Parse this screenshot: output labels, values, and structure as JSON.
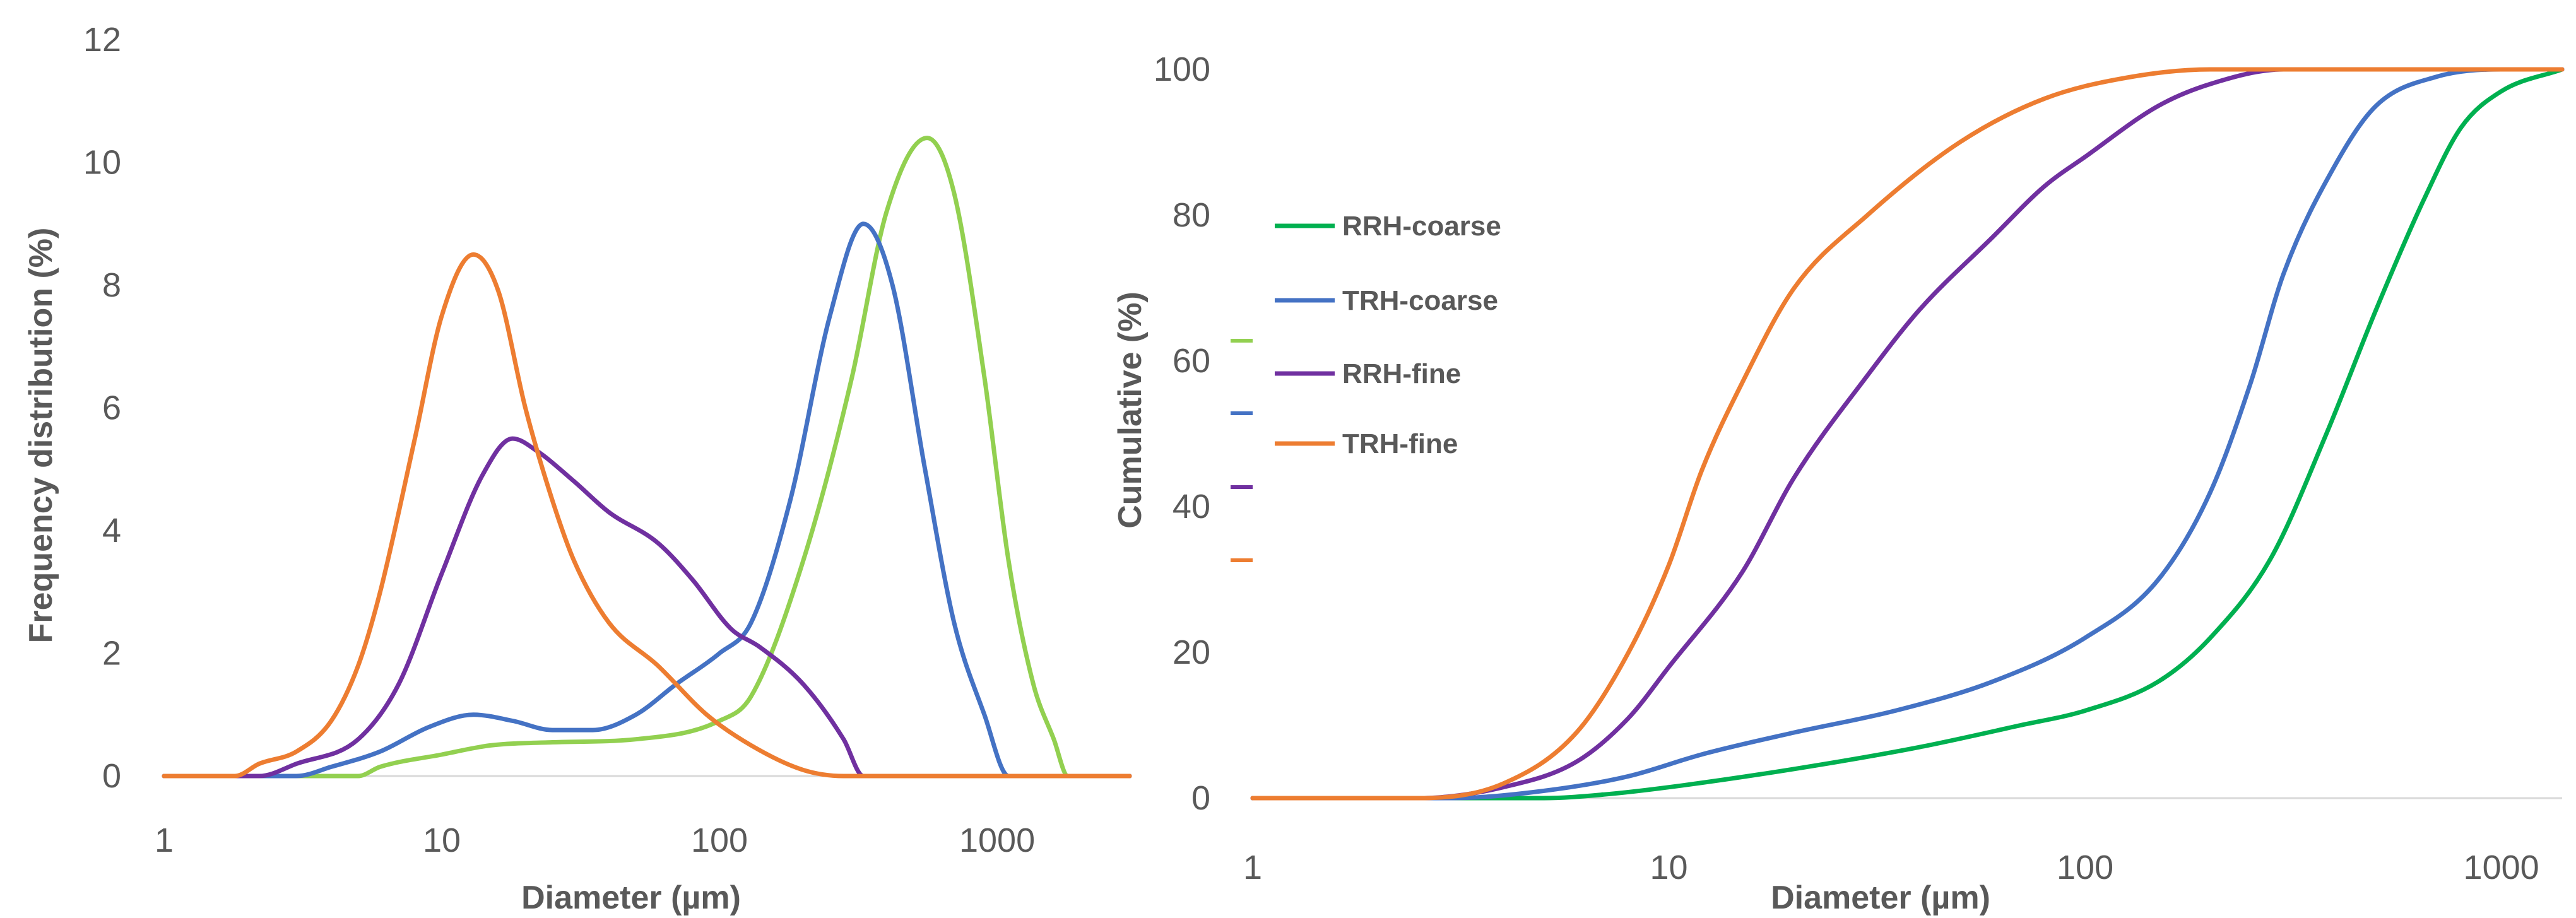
{
  "chart_data": [
    {
      "type": "line",
      "title": "",
      "xlabel": "Diameter (µm)",
      "ylabel": "Frequency distribution (%)",
      "xscale": "log",
      "xlim": [
        1,
        3000
      ],
      "ylim": [
        0,
        12
      ],
      "xticks": [
        {
          "value": 1,
          "label": "1"
        },
        {
          "value": 10,
          "label": "10"
        },
        {
          "value": 100,
          "label": "100"
        },
        {
          "value": 1000,
          "label": "1000"
        }
      ],
      "yticks": [
        {
          "value": 0,
          "label": "0"
        },
        {
          "value": 2,
          "label": "2"
        },
        {
          "value": 4,
          "label": "4"
        },
        {
          "value": 6,
          "label": "6"
        },
        {
          "value": 8,
          "label": "8"
        },
        {
          "value": 10,
          "label": "10"
        },
        {
          "value": 12,
          "label": "12"
        }
      ],
      "grid": false,
      "series": [
        {
          "name": "RRH-coarse",
          "color": "#92d050",
          "points": [
            [
              1,
              0
            ],
            [
              5,
              0
            ],
            [
              6,
              0.15
            ],
            [
              10,
              0.35
            ],
            [
              15,
              0.5
            ],
            [
              25,
              0.55
            ],
            [
              50,
              0.6
            ],
            [
              100,
              0.9
            ],
            [
              130,
              1.3
            ],
            [
              200,
              3.5
            ],
            [
              300,
              6.5
            ],
            [
              400,
              9.2
            ],
            [
              560,
              10.4
            ],
            [
              700,
              9.5
            ],
            [
              900,
              6.5
            ],
            [
              1100,
              3.5
            ],
            [
              1350,
              1.5
            ],
            [
              1600,
              0.6
            ],
            [
              1800,
              0
            ],
            [
              3000,
              0
            ]
          ]
        },
        {
          "name": "TRH-coarse",
          "color": "#4472c4",
          "points": [
            [
              1,
              0
            ],
            [
              3,
              0
            ],
            [
              4,
              0.15
            ],
            [
              6,
              0.4
            ],
            [
              9,
              0.8
            ],
            [
              13,
              1.0
            ],
            [
              18,
              0.9
            ],
            [
              25,
              0.75
            ],
            [
              35,
              0.75
            ],
            [
              50,
              1.0
            ],
            [
              70,
              1.5
            ],
            [
              100,
              2.0
            ],
            [
              130,
              2.5
            ],
            [
              180,
              4.5
            ],
            [
              250,
              7.5
            ],
            [
              330,
              9.0
            ],
            [
              420,
              8.0
            ],
            [
              550,
              5.0
            ],
            [
              700,
              2.5
            ],
            [
              900,
              1.0
            ],
            [
              1100,
              0
            ],
            [
              3000,
              0
            ]
          ]
        },
        {
          "name": "RRH-fine",
          "color": "#7030a0",
          "points": [
            [
              1,
              0
            ],
            [
              2.2,
              0
            ],
            [
              3,
              0.2
            ],
            [
              5,
              0.6
            ],
            [
              7,
              1.5
            ],
            [
              10,
              3.3
            ],
            [
              14,
              4.9
            ],
            [
              18,
              5.5
            ],
            [
              22,
              5.3
            ],
            [
              30,
              4.8
            ],
            [
              40,
              4.3
            ],
            [
              60,
              3.8
            ],
            [
              80,
              3.2
            ],
            [
              110,
              2.4
            ],
            [
              140,
              2.1
            ],
            [
              200,
              1.5
            ],
            [
              280,
              0.6
            ],
            [
              330,
              0
            ],
            [
              3000,
              0
            ]
          ]
        },
        {
          "name": "TRH-fine",
          "color": "#ed7d31",
          "points": [
            [
              1,
              0
            ],
            [
              1.8,
              0
            ],
            [
              2.2,
              0.2
            ],
            [
              3,
              0.4
            ],
            [
              4,
              0.9
            ],
            [
              5,
              1.8
            ],
            [
              6,
              3.0
            ],
            [
              8,
              5.5
            ],
            [
              10,
              7.5
            ],
            [
              13,
              8.5
            ],
            [
              16,
              7.9
            ],
            [
              20,
              6.0
            ],
            [
              25,
              4.5
            ],
            [
              30,
              3.5
            ],
            [
              40,
              2.5
            ],
            [
              60,
              1.8
            ],
            [
              90,
              1.0
            ],
            [
              130,
              0.5
            ],
            [
              200,
              0.1
            ],
            [
              280,
              0
            ],
            [
              3000,
              0
            ]
          ]
        }
      ]
    },
    {
      "type": "line",
      "title": "",
      "xlabel": "Diameter (µm)",
      "ylabel": "Cumulative (%)",
      "xscale": "log",
      "xlim": [
        1,
        1400
      ],
      "ylim": [
        0,
        100
      ],
      "xticks": [
        {
          "value": 1,
          "label": "1"
        },
        {
          "value": 10,
          "label": "10"
        },
        {
          "value": 100,
          "label": "100"
        },
        {
          "value": 1000,
          "label": "1000"
        }
      ],
      "yticks": [
        {
          "value": 0,
          "label": "0"
        },
        {
          "value": 20,
          "label": "20"
        },
        {
          "value": 40,
          "label": "40"
        },
        {
          "value": 60,
          "label": "60"
        },
        {
          "value": 80,
          "label": "80"
        },
        {
          "value": 100,
          "label": "100"
        }
      ],
      "grid": false,
      "legend": {
        "position": "left",
        "entries": [
          "RRH-coarse",
          "TRH-coarse",
          "RRH-fine",
          "TRH-fine"
        ]
      },
      "series": [
        {
          "name": "RRH-coarse",
          "color": "#00b050",
          "points": [
            [
              1,
              0
            ],
            [
              5,
              0
            ],
            [
              7,
              0.5
            ],
            [
              10,
              1.5
            ],
            [
              20,
              4
            ],
            [
              40,
              7
            ],
            [
              70,
              10
            ],
            [
              100,
              12
            ],
            [
              150,
              16
            ],
            [
              200,
              22
            ],
            [
              280,
              33
            ],
            [
              380,
              50
            ],
            [
              500,
              67
            ],
            [
              650,
              82
            ],
            [
              800,
              92
            ],
            [
              1000,
              97
            ],
            [
              1400,
              100
            ]
          ]
        },
        {
          "name": "TRH-coarse",
          "color": "#4472c4",
          "points": [
            [
              1,
              0
            ],
            [
              3,
              0
            ],
            [
              5,
              1
            ],
            [
              8,
              3
            ],
            [
              12,
              6
            ],
            [
              20,
              9
            ],
            [
              35,
              12
            ],
            [
              60,
              16
            ],
            [
              100,
              22
            ],
            [
              150,
              30
            ],
            [
              200,
              42
            ],
            [
              250,
              57
            ],
            [
              300,
              72
            ],
            [
              400,
              87
            ],
            [
              500,
              95
            ],
            [
              700,
              99
            ],
            [
              1000,
              100
            ],
            [
              1400,
              100
            ]
          ]
        },
        {
          "name": "RRH-fine",
          "color": "#7030a0",
          "points": [
            [
              1,
              0
            ],
            [
              2.5,
              0
            ],
            [
              4,
              1.5
            ],
            [
              6,
              5
            ],
            [
              8,
              11
            ],
            [
              10,
              18
            ],
            [
              15,
              31
            ],
            [
              20,
              44
            ],
            [
              30,
              58
            ],
            [
              40,
              67
            ],
            [
              60,
              77
            ],
            [
              80,
              84
            ],
            [
              100,
              88
            ],
            [
              150,
              95
            ],
            [
              200,
              98
            ],
            [
              300,
              100
            ],
            [
              1400,
              100
            ]
          ]
        },
        {
          "name": "TRH-fine",
          "color": "#ed7d31",
          "points": [
            [
              1,
              0
            ],
            [
              2.5,
              0
            ],
            [
              4,
              2
            ],
            [
              6,
              9
            ],
            [
              8,
              20
            ],
            [
              10,
              32
            ],
            [
              12,
              45
            ],
            [
              15,
              57
            ],
            [
              20,
              70
            ],
            [
              30,
              80
            ],
            [
              50,
              90
            ],
            [
              80,
              96
            ],
            [
              130,
              99
            ],
            [
              200,
              100
            ],
            [
              1400,
              100
            ]
          ]
        }
      ]
    }
  ]
}
